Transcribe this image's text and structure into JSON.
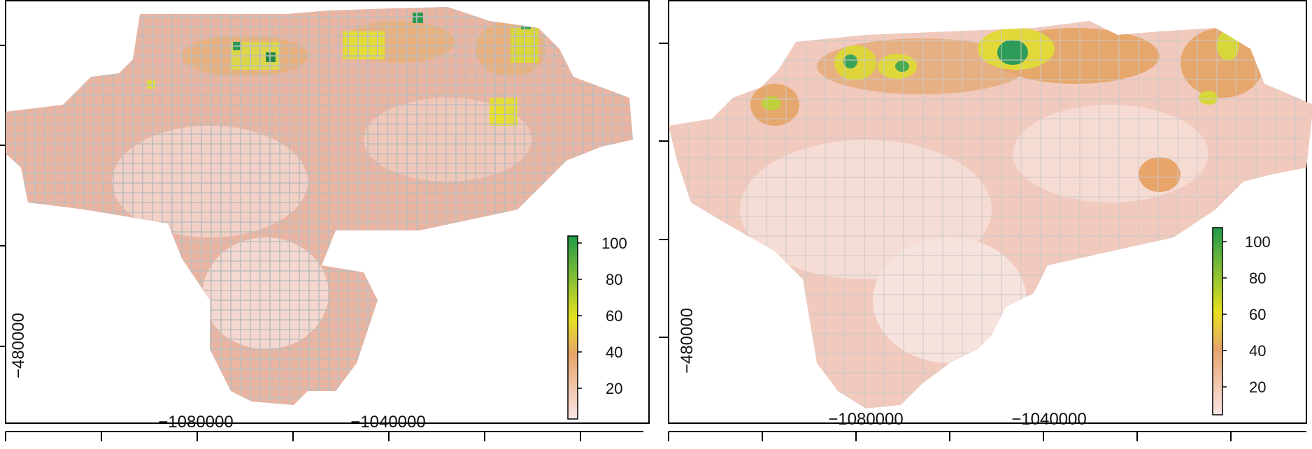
{
  "panels": [
    {
      "id": "left",
      "type": "gridded-map",
      "x_tick_labels": [
        "−1080000",
        "−1040000"
      ],
      "y_tick_labels": [
        "−480000"
      ],
      "legend": {
        "ticks": [
          "100",
          "80",
          "60",
          "40",
          "20"
        ],
        "min": 0,
        "max": 100
      },
      "colors": {
        "low": "#fbe6e6",
        "mid": "#e6a46c",
        "high_yellow": "#e6e11f",
        "top": "#1f9a4a",
        "grid_stroke": "#bdbdbd"
      }
    },
    {
      "id": "right",
      "type": "continuous-map",
      "x_tick_labels": [
        "−1080000",
        "−1040000"
      ],
      "y_tick_labels": [
        "−480000"
      ],
      "legend": {
        "ticks": [
          "100",
          "80",
          "60",
          "40",
          "20"
        ],
        "min": 0,
        "max": 100
      },
      "colors": {
        "low": "#fbe6e6",
        "mid": "#e6a46c",
        "high_yellow": "#e6e11f",
        "top": "#1f9a4a",
        "grid_stroke": "#c9c9c9"
      }
    }
  ]
}
